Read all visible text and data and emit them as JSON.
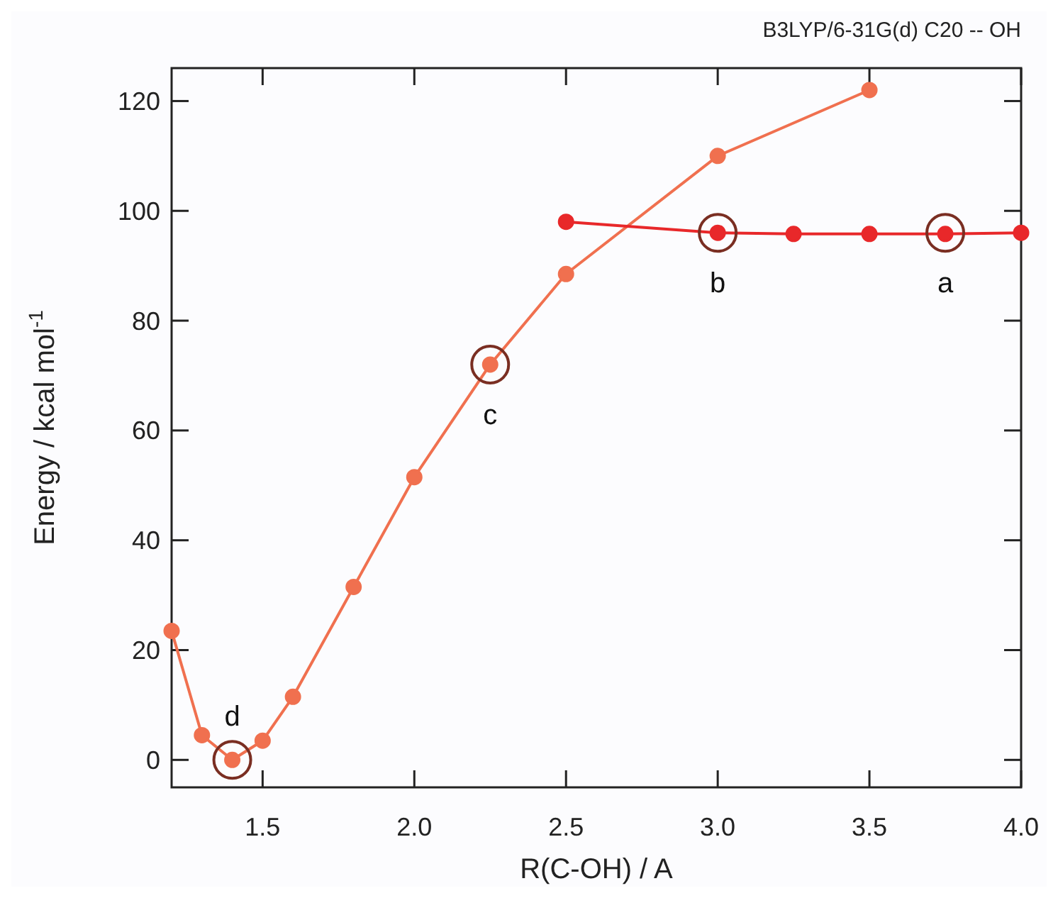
{
  "chart_data": {
    "type": "line",
    "title": "B3LYP/6-31G(d)  C20 -- OH",
    "xlabel": "R(C-OH) / A",
    "ylabel": "Energy / kcal mol$^{-1}$",
    "xlim": [
      1.2,
      4.0
    ],
    "xticks": [
      1.5,
      {
        "value": 2,
        "label": "2.0"
      },
      2.5,
      {
        "value": 3,
        "label": "3.0"
      },
      3.5,
      {
        "value": 4,
        "label": "4.0"
      }
    ],
    "ylim": [
      -5,
      126
    ],
    "yticks": [
      0,
      20,
      40,
      60,
      80,
      100,
      120
    ],
    "grid": false,
    "marker": "circle",
    "line_style": "solid",
    "series": [
      {
        "color": "#f0704f",
        "x": [
          1.2,
          1.3,
          1.4,
          1.5,
          1.6,
          1.8,
          2.0,
          2.25,
          2.5,
          3.0,
          3.5
        ],
        "values": [
          23.5,
          4.5,
          0,
          3.5,
          11.5,
          31.5,
          51.5,
          72,
          88.5,
          110,
          122
        ]
      },
      {
        "color": "#e8282a",
        "x": [
          2.5,
          3.0,
          3.25,
          3.5,
          3.75,
          4.0
        ],
        "values": [
          98,
          96,
          95.8,
          95.8,
          95.8,
          96
        ]
      }
    ],
    "annotations": [
      {
        "text": "d",
        "x": 1.4,
        "y": 0
      },
      {
        "text": "c",
        "x": 2.25,
        "y": 72
      },
      {
        "text": "b",
        "x": 3.0,
        "y": 96
      },
      {
        "text": "a",
        "x": 3.75,
        "y": 96
      }
    ]
  }
}
